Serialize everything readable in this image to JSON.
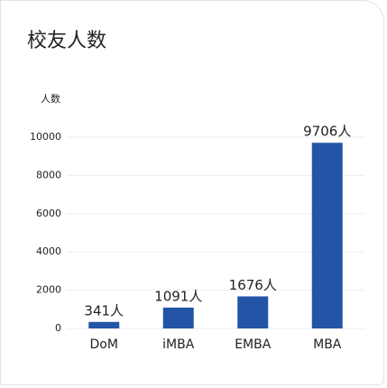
{
  "chart_data": {
    "type": "bar",
    "title": "校友人数",
    "y_label": "人数",
    "categories": [
      "DoM",
      "iMBA",
      "EMBA",
      "MBA"
    ],
    "values": [
      341,
      1091,
      1676,
      9706
    ],
    "value_labels": [
      "341人",
      "1091人",
      "1676人",
      "9706人"
    ],
    "color": "#2355a6",
    "ylim": [
      0,
      10000
    ],
    "yticks": [
      0,
      2000,
      4000,
      6000,
      8000,
      10000
    ],
    "grid": true
  }
}
